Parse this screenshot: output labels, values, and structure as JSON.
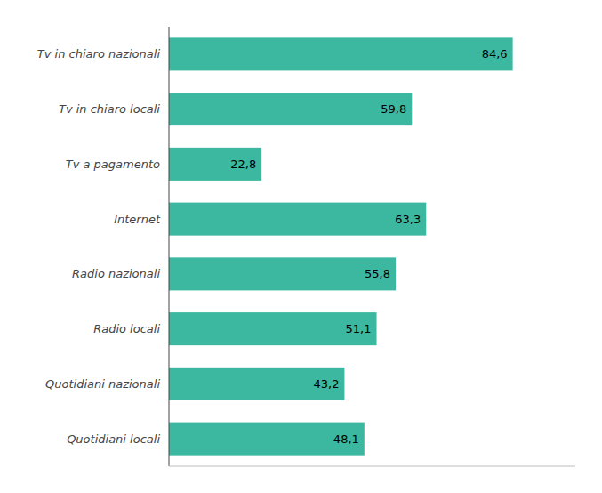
{
  "chart_data": {
    "type": "bar",
    "orientation": "horizontal",
    "categories": [
      "Tv in chiaro nazionali",
      "Tv in chiaro locali",
      "Tv a pagamento",
      "Internet",
      "Radio nazionali",
      "Radio locali",
      "Quotidiani nazionali",
      "Quotidiani locali"
    ],
    "values": [
      84.6,
      59.8,
      22.8,
      63.3,
      55.8,
      51.1,
      43.2,
      48.1
    ],
    "value_labels": [
      "84,6",
      "59,8",
      "22,8",
      "63,3",
      "55,8",
      "51,1",
      "43,2",
      "48,1"
    ],
    "color": "#3cb8a0",
    "xlim": [
      0,
      100
    ],
    "data_labels": true,
    "tick_labels": false,
    "grid": false
  }
}
